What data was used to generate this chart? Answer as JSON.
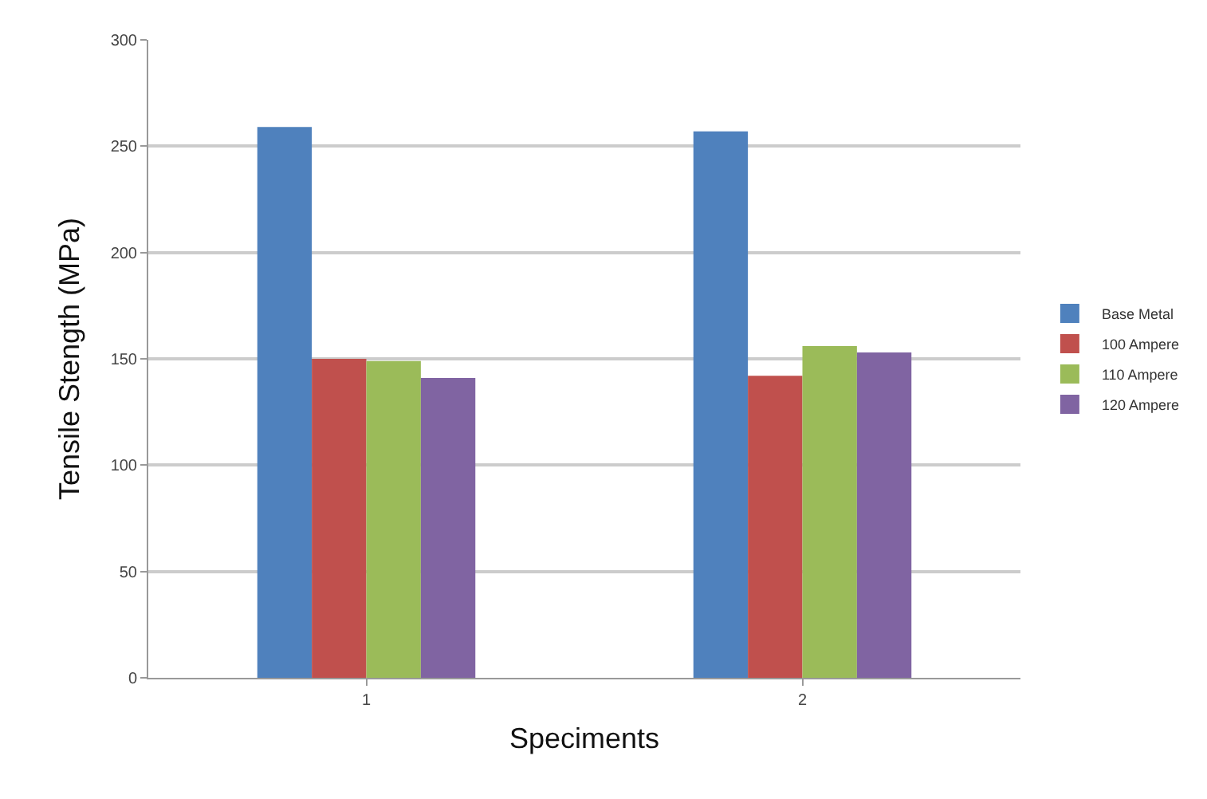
{
  "chart_data": {
    "type": "bar",
    "xlabel": "Speciments",
    "ylabel": "Tensile Stength (MPa)",
    "categories": [
      "1",
      "2"
    ],
    "series": [
      {
        "name": "Base Metal",
        "color": "#4f81bd",
        "values": [
          259,
          257
        ]
      },
      {
        "name": "100 Ampere",
        "color": "#c0504d",
        "values": [
          150,
          142
        ]
      },
      {
        "name": "110 Ampere",
        "color": "#9bbb59",
        "values": [
          149,
          156
        ]
      },
      {
        "name": "120 Ampere",
        "color": "#8064a2",
        "values": [
          141,
          153
        ]
      }
    ],
    "ylim": [
      0,
      300
    ],
    "yticks": [
      0,
      50,
      100,
      150,
      200,
      250,
      300
    ],
    "grid": "y",
    "legend": "right"
  }
}
